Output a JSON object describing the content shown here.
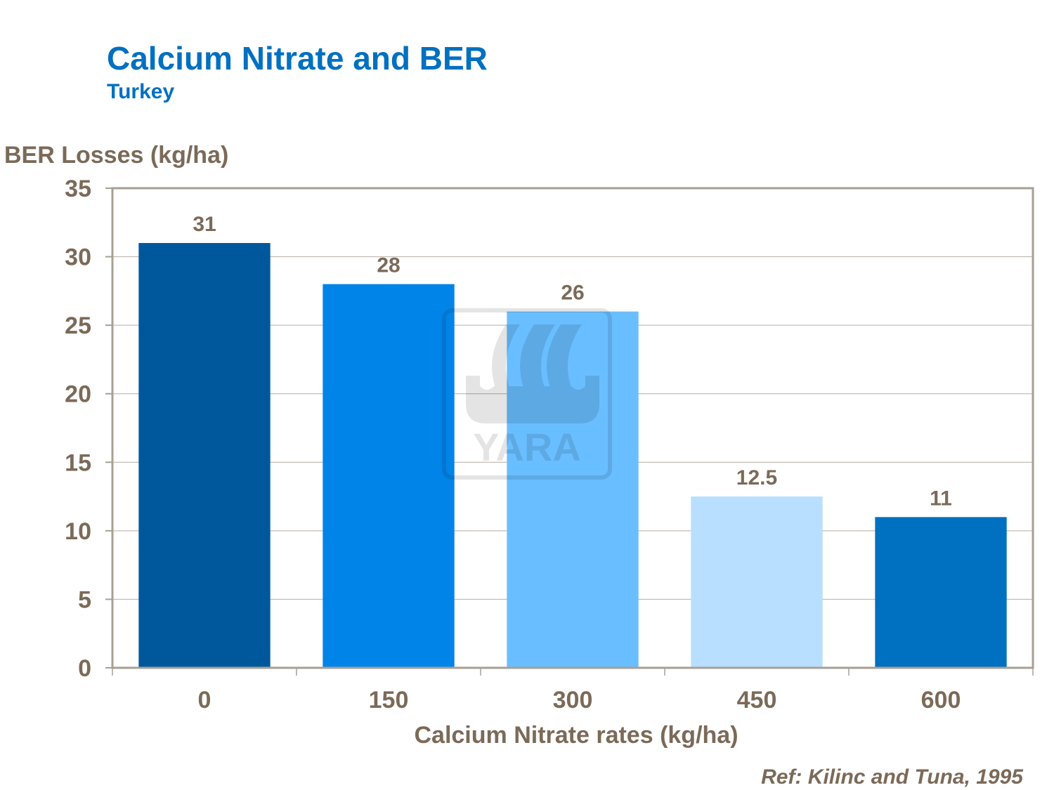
{
  "title": "Calcium Nitrate and BER",
  "subtitle": "Turkey",
  "reference": "Ref: Kilinc and Tuna, 1995",
  "watermark": "YARA",
  "chart_data": {
    "type": "bar",
    "ylabel": "BER Losses (kg/ha)",
    "xlabel": "Calcium Nitrate rates (kg/ha)",
    "categories": [
      "0",
      "150",
      "300",
      "450",
      "600"
    ],
    "values": [
      31,
      28,
      26,
      12.5,
      11
    ],
    "data_labels": [
      "31",
      "28",
      "26",
      "12.5",
      "11"
    ],
    "bar_colors": [
      "#00589C",
      "#0084E8",
      "#69BEFF",
      "#B8DFFF",
      "#0070C0"
    ],
    "ylim": [
      0,
      35
    ],
    "yticks": [
      0,
      5,
      10,
      15,
      20,
      25,
      30,
      35
    ],
    "grid": true,
    "legend": "none"
  }
}
